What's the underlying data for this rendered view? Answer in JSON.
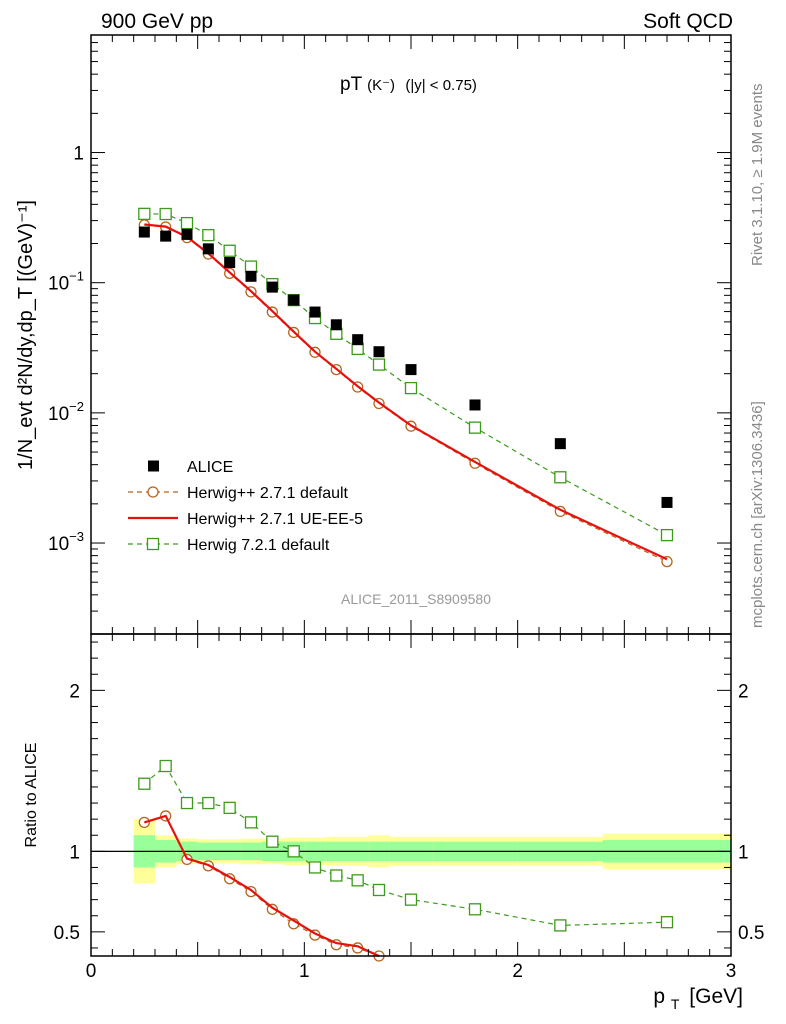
{
  "header": {
    "left_label": "900 GeV pp",
    "right_label": "Soft QCD"
  },
  "side_labels": {
    "rivet": "Rivet 3.1.10, ≥ 1.9M events",
    "source": "mcplots.cern.ch [arXiv:1306.3436]"
  },
  "colors": {
    "data": "#000000",
    "herwig_271_default": "#b5651d",
    "herwig_271_ueee5": "#e8100e",
    "herwig_721_default": "#3c9a1c",
    "band_inner": "#99ff99",
    "band_outer": "#ffff99"
  },
  "chart_data": [
    {
      "type": "scatter",
      "panel": "main",
      "title_main": "pT",
      "title_particle": "(K⁻)",
      "title_cut": "(|y| < 0.75)",
      "watermark": "ALICE_2011_S8909580",
      "ylabel": "1/N_evt d²N/dy,dp_T [(GeV)⁻¹]",
      "yscale": "log",
      "xlim": [
        0,
        3
      ],
      "ylim": [
        0.0002,
        8
      ],
      "y_ticks": [
        {
          "value": 0.001,
          "mantissa": "10",
          "exp": "−3"
        },
        {
          "value": 0.01,
          "mantissa": "10",
          "exp": "−2"
        },
        {
          "value": 0.1,
          "mantissa": "10",
          "exp": "−1"
        },
        {
          "value": 1,
          "mantissa": "1",
          "exp": ""
        }
      ],
      "legend": [
        {
          "key": "data",
          "label": "ALICE"
        },
        {
          "key": "h271",
          "label": "Herwig++ 2.7.1 default"
        },
        {
          "key": "h271ue",
          "label": "Herwig++ 2.7.1 UE-EE-5"
        },
        {
          "key": "h721",
          "label": "Herwig 7.2.1 default"
        }
      ],
      "series": [
        {
          "key": "data",
          "name": "ALICE",
          "x": [
            0.25,
            0.35,
            0.45,
            0.55,
            0.65,
            0.75,
            0.85,
            0.95,
            1.05,
            1.15,
            1.25,
            1.35,
            1.5,
            1.8,
            2.2,
            2.7
          ],
          "y": [
            0.245,
            0.228,
            0.235,
            0.182,
            0.143,
            0.112,
            0.0925,
            0.0735,
            0.0595,
            0.0475,
            0.0365,
            0.0295,
            0.0215,
            0.0115,
            0.0058,
            0.00205
          ]
        },
        {
          "key": "h271",
          "name": "Herwig++ 2.7.1 default",
          "x": [
            0.25,
            0.35,
            0.45,
            0.55,
            0.65,
            0.75,
            0.85,
            0.95,
            1.05,
            1.15,
            1.25,
            1.35,
            1.5,
            1.8,
            2.2,
            2.7
          ],
          "y": [
            0.278,
            0.268,
            0.222,
            0.166,
            0.118,
            0.085,
            0.0595,
            0.0415,
            0.0292,
            0.0215,
            0.0158,
            0.0118,
            0.0079,
            0.0041,
            0.00175,
            0.00072
          ]
        },
        {
          "key": "h271ue",
          "name": "Herwig++ 2.7.1 UE-EE-5",
          "x": [
            0.25,
            0.35,
            0.45,
            0.55,
            0.65,
            0.75,
            0.85,
            0.95,
            1.05,
            1.15,
            1.25,
            1.35,
            1.5,
            1.8,
            2.2,
            2.7
          ],
          "y": [
            0.28,
            0.27,
            0.225,
            0.168,
            0.12,
            0.086,
            0.0605,
            0.042,
            0.0295,
            0.0218,
            0.016,
            0.012,
            0.008,
            0.0042,
            0.0018,
            0.00075
          ]
        },
        {
          "key": "h721",
          "name": "Herwig 7.2.1 default",
          "x": [
            0.25,
            0.35,
            0.45,
            0.55,
            0.65,
            0.75,
            0.85,
            0.95,
            1.05,
            1.15,
            1.25,
            1.35,
            1.5,
            1.8,
            2.2,
            2.7
          ],
          "y": [
            0.338,
            0.337,
            0.287,
            0.232,
            0.176,
            0.133,
            0.0975,
            0.0735,
            0.0535,
            0.0405,
            0.031,
            0.0235,
            0.0155,
            0.0077,
            0.0032,
            0.00115
          ]
        }
      ]
    },
    {
      "type": "line",
      "panel": "ratio",
      "ylabel": "Ratio to ALICE",
      "xlabel_main": "p",
      "xlabel_sub": "T",
      "xlabel_unit": "[GeV]",
      "xlim": [
        0,
        3
      ],
      "ylim": [
        0.35,
        2.35
      ],
      "x_ticks": [
        0,
        1,
        2,
        3
      ],
      "y_ticks": [
        0.5,
        1,
        2
      ],
      "band": {
        "edges": [
          0.2,
          0.3,
          0.4,
          0.5,
          0.6,
          0.7,
          0.8,
          0.9,
          1.0,
          1.1,
          1.2,
          1.3,
          1.4,
          1.6,
          2.0,
          2.4,
          3.0
        ],
        "inner": [
          0.1,
          0.07,
          0.06,
          0.055,
          0.055,
          0.055,
          0.06,
          0.06,
          0.06,
          0.06,
          0.06,
          0.06,
          0.06,
          0.06,
          0.06,
          0.07
        ],
        "outer": [
          0.2,
          0.1,
          0.08,
          0.075,
          0.075,
          0.08,
          0.08,
          0.085,
          0.085,
          0.09,
          0.09,
          0.1,
          0.09,
          0.09,
          0.09,
          0.11
        ]
      },
      "series": [
        {
          "key": "h271",
          "name": "Herwig++ 2.7.1 default",
          "x": [
            0.25,
            0.35,
            0.45,
            0.55,
            0.65,
            0.75,
            0.85,
            0.95,
            1.05,
            1.15,
            1.25,
            1.35
          ],
          "y": [
            1.18,
            1.22,
            0.95,
            0.91,
            0.83,
            0.75,
            0.64,
            0.55,
            0.48,
            0.42,
            0.4,
            0.35
          ]
        },
        {
          "key": "h271ue",
          "name": "Herwig++ 2.7.1 UE-EE-5",
          "x": [
            0.25,
            0.35,
            0.45,
            0.55,
            0.65,
            0.75,
            0.85,
            0.95,
            1.05,
            1.15,
            1.25,
            1.35
          ],
          "y": [
            1.18,
            1.22,
            0.955,
            0.915,
            0.84,
            0.76,
            0.65,
            0.57,
            0.49,
            0.43,
            0.41,
            0.35
          ]
        },
        {
          "key": "h721",
          "name": "Herwig 7.2.1 default",
          "x": [
            0.25,
            0.35,
            0.45,
            0.55,
            0.65,
            0.75,
            0.85,
            0.95,
            1.05,
            1.15,
            1.25,
            1.35,
            1.5,
            1.8,
            2.2,
            2.7
          ],
          "y": [
            1.42,
            1.53,
            1.3,
            1.3,
            1.27,
            1.18,
            1.06,
            1.0,
            0.9,
            0.85,
            0.82,
            0.76,
            0.7,
            0.64,
            0.54,
            0.56
          ]
        }
      ]
    }
  ]
}
